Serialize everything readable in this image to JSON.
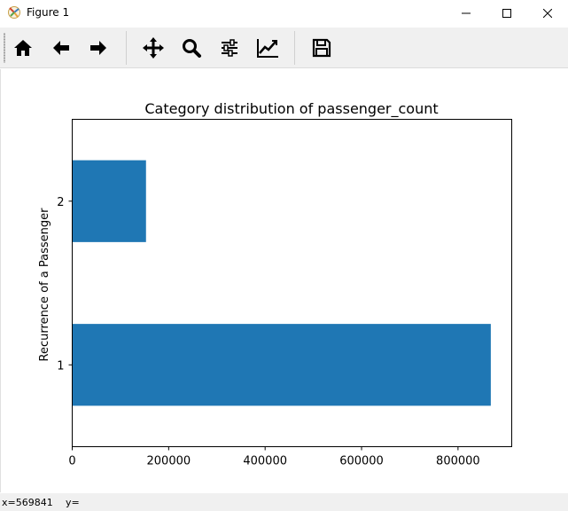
{
  "window": {
    "title": "Figure 1",
    "icon": "matplotlib-icon",
    "controls": [
      "minimize-icon",
      "maximize-icon",
      "close-icon"
    ]
  },
  "toolbar": {
    "tools": [
      {
        "name": "home",
        "icon": "home-icon"
      },
      {
        "name": "back",
        "icon": "arrow-left-icon"
      },
      {
        "name": "forward",
        "icon": "arrow-right-icon"
      },
      {
        "name": "pan",
        "icon": "move-icon"
      },
      {
        "name": "zoom",
        "icon": "magnifier-icon"
      },
      {
        "name": "subplots",
        "icon": "sliders-icon"
      },
      {
        "name": "customize",
        "icon": "line-chart-icon"
      },
      {
        "name": "save",
        "icon": "floppy-disk-icon"
      }
    ]
  },
  "status": {
    "x": "x=569841",
    "y": "y="
  },
  "colors": {
    "bar": "#1f77b4"
  },
  "chart_data": {
    "type": "bar",
    "orientation": "horizontal",
    "title": "Category distribution of passenger_count",
    "xlabel": "",
    "ylabel": "Recurrence of a Passenger",
    "categories": [
      "1",
      "2"
    ],
    "values": [
      868000,
      153000
    ],
    "xlim": [
      0,
      911400
    ],
    "xticks": [
      0,
      200000,
      400000,
      600000,
      800000
    ],
    "xtick_labels": [
      "0",
      "200000",
      "400000",
      "600000",
      "800000"
    ],
    "grid": false
  }
}
